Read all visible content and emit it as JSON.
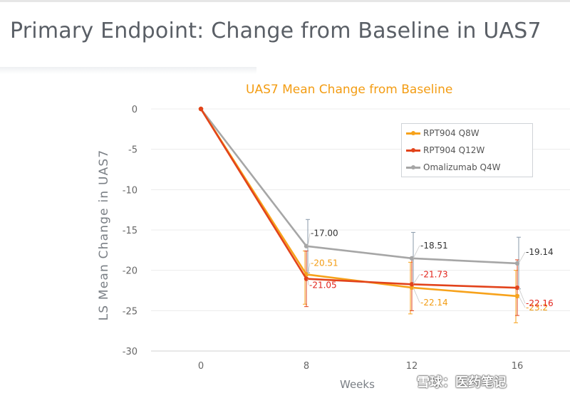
{
  "slide": {
    "title": "Primary Endpoint: Change from Baseline in UAS7",
    "watermark": "雪球：医药笔记"
  },
  "chart_data": {
    "type": "line",
    "title": "UAS7 Mean Change from Baseline",
    "xlabel": "Weeks",
    "ylabel": "LS Mean Change in UAS7",
    "x": [
      0,
      8,
      12,
      16
    ],
    "ylim": [
      -30,
      0
    ],
    "yticks": [
      0,
      -5,
      -10,
      -15,
      -20,
      -25,
      -30
    ],
    "grid": true,
    "legend": "top-right",
    "series": [
      {
        "name": "RPT904 Q8W",
        "color": "#f7a21b",
        "label_color": "#f39c12",
        "values": [
          0,
          -20.51,
          -22.14,
          -23.2
        ],
        "labels": [
          "",
          "-20.51",
          "-22.14",
          "-23.2"
        ],
        "error_low": [
          null,
          -24.2,
          -25.4,
          -26.5
        ],
        "error_high": [
          null,
          -17.6,
          -19.0,
          -20.0
        ]
      },
      {
        "name": "RPT904 Q12W",
        "color": "#e2431b",
        "label_color": "#e2231a",
        "values": [
          0,
          -21.05,
          -21.73,
          -22.16
        ],
        "labels": [
          "",
          "-21.05",
          "-21.73",
          "-22.16"
        ],
        "error_low": [
          null,
          -24.5,
          -25.0,
          -25.6
        ],
        "error_high": [
          null,
          -17.6,
          -18.4,
          -18.7
        ]
      },
      {
        "name": "Omalizumab Q4W",
        "color": "#a6a6a6",
        "label_color": "#333333",
        "values": [
          0,
          -17.0,
          -18.51,
          -19.14
        ],
        "labels": [
          "",
          "-17.00",
          "-18.51",
          "-19.14"
        ],
        "error_low": [
          null,
          -20.3,
          -21.7,
          -22.3
        ],
        "error_high": [
          null,
          -13.7,
          -15.3,
          -15.9
        ]
      }
    ]
  }
}
